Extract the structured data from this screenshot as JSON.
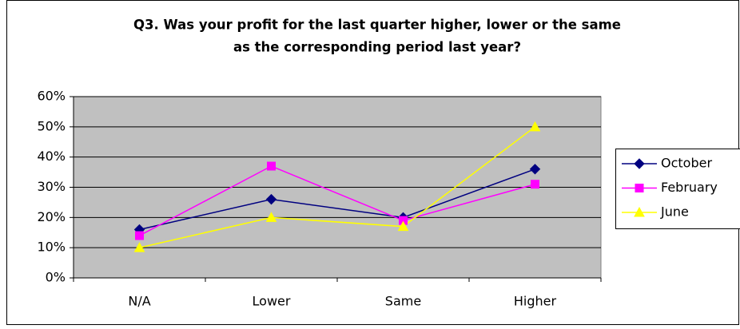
{
  "chart_data": {
    "type": "line",
    "title": [
      "Q3. Was your profit for the last quarter higher, lower or the same",
      "as the corresponding period last year?"
    ],
    "categories": [
      "N/A",
      "Lower",
      "Same",
      "Higher"
    ],
    "series": [
      {
        "name": "October",
        "color": "#000080",
        "marker": "diamond",
        "values": [
          16,
          26,
          20,
          36
        ]
      },
      {
        "name": "February",
        "color": "#FF00FF",
        "marker": "square",
        "values": [
          14,
          37,
          19,
          31
        ]
      },
      {
        "name": "June",
        "color": "#FFFF00",
        "marker": "triangle",
        "values": [
          10,
          20,
          17,
          50
        ]
      }
    ],
    "ylim": [
      0,
      60
    ],
    "yticks": [
      {
        "value": 0,
        "label": "0%"
      },
      {
        "value": 10,
        "label": "10%"
      },
      {
        "value": 20,
        "label": "20%"
      },
      {
        "value": 30,
        "label": "30%"
      },
      {
        "value": 40,
        "label": "40%"
      },
      {
        "value": 50,
        "label": "50%"
      },
      {
        "value": 60,
        "label": "60%"
      }
    ],
    "grid": true,
    "plot_background": "#C0C0C0",
    "legend": "right"
  }
}
